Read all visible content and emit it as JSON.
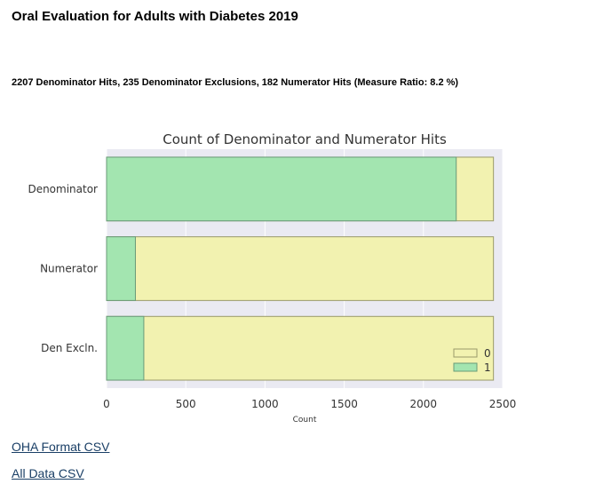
{
  "page": {
    "title": "Oral Evaluation for Adults with Diabetes 2019",
    "summary": "2207 Denominator Hits, 235 Denominator Exclusions, 182 Numerator Hits (Measure Ratio: 8.2 %)"
  },
  "links": {
    "oha_csv": "OHA Format CSV",
    "all_csv": "All Data CSV"
  },
  "chart_data": {
    "type": "bar",
    "orientation": "horizontal",
    "stacked": false,
    "title": "Count of Denominator and Numerator Hits",
    "xlabel": "Count",
    "ylabel": "",
    "categories": [
      "Denominator",
      "Numerator",
      "Den Excln."
    ],
    "series": [
      {
        "name": "0",
        "values": [
          2442,
          2442,
          2442
        ],
        "color": "#f2f2b0"
      },
      {
        "name": "1",
        "values": [
          2207,
          182,
          235
        ],
        "color": "#a3e5b0"
      }
    ],
    "xlim": [
      0,
      2500
    ],
    "xticks": [
      0,
      500,
      1000,
      1500,
      2000,
      2500
    ],
    "grid": true,
    "legend_position": "bottom-right",
    "background": "#eaeaf2"
  }
}
